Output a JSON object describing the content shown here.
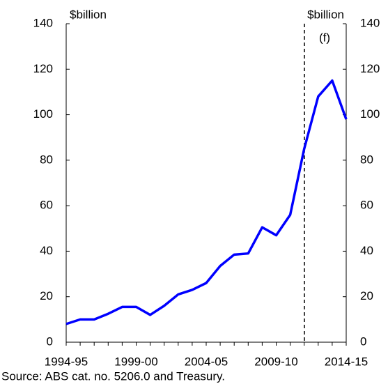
{
  "chart_data": {
    "type": "line",
    "categories": [
      "1994-95",
      null,
      null,
      null,
      null,
      "1999-00",
      null,
      null,
      null,
      null,
      "2004-05",
      null,
      null,
      null,
      null,
      "2009-10",
      null,
      null,
      null,
      null,
      "2014-15"
    ],
    "series": [
      {
        "color": "#0000ff",
        "values": [
          8,
          10,
          10,
          12.5,
          15.5,
          15.5,
          12,
          16,
          21,
          23,
          26,
          33.5,
          38.5,
          39,
          50.5,
          47,
          56,
          85,
          108,
          115,
          98
        ]
      }
    ],
    "ylim": [
      0,
      140
    ],
    "yticks": [
      0,
      20,
      40,
      60,
      80,
      100,
      120,
      140
    ],
    "y2lim": [
      0,
      140
    ],
    "y2ticks": [
      0,
      20,
      40,
      60,
      80,
      100,
      120,
      140
    ],
    "y_label": "$billion",
    "y2_label": "$billion",
    "annotation": "(f)",
    "source": "Source:  ABS cat. no. 5206.0 and Treasury."
  }
}
